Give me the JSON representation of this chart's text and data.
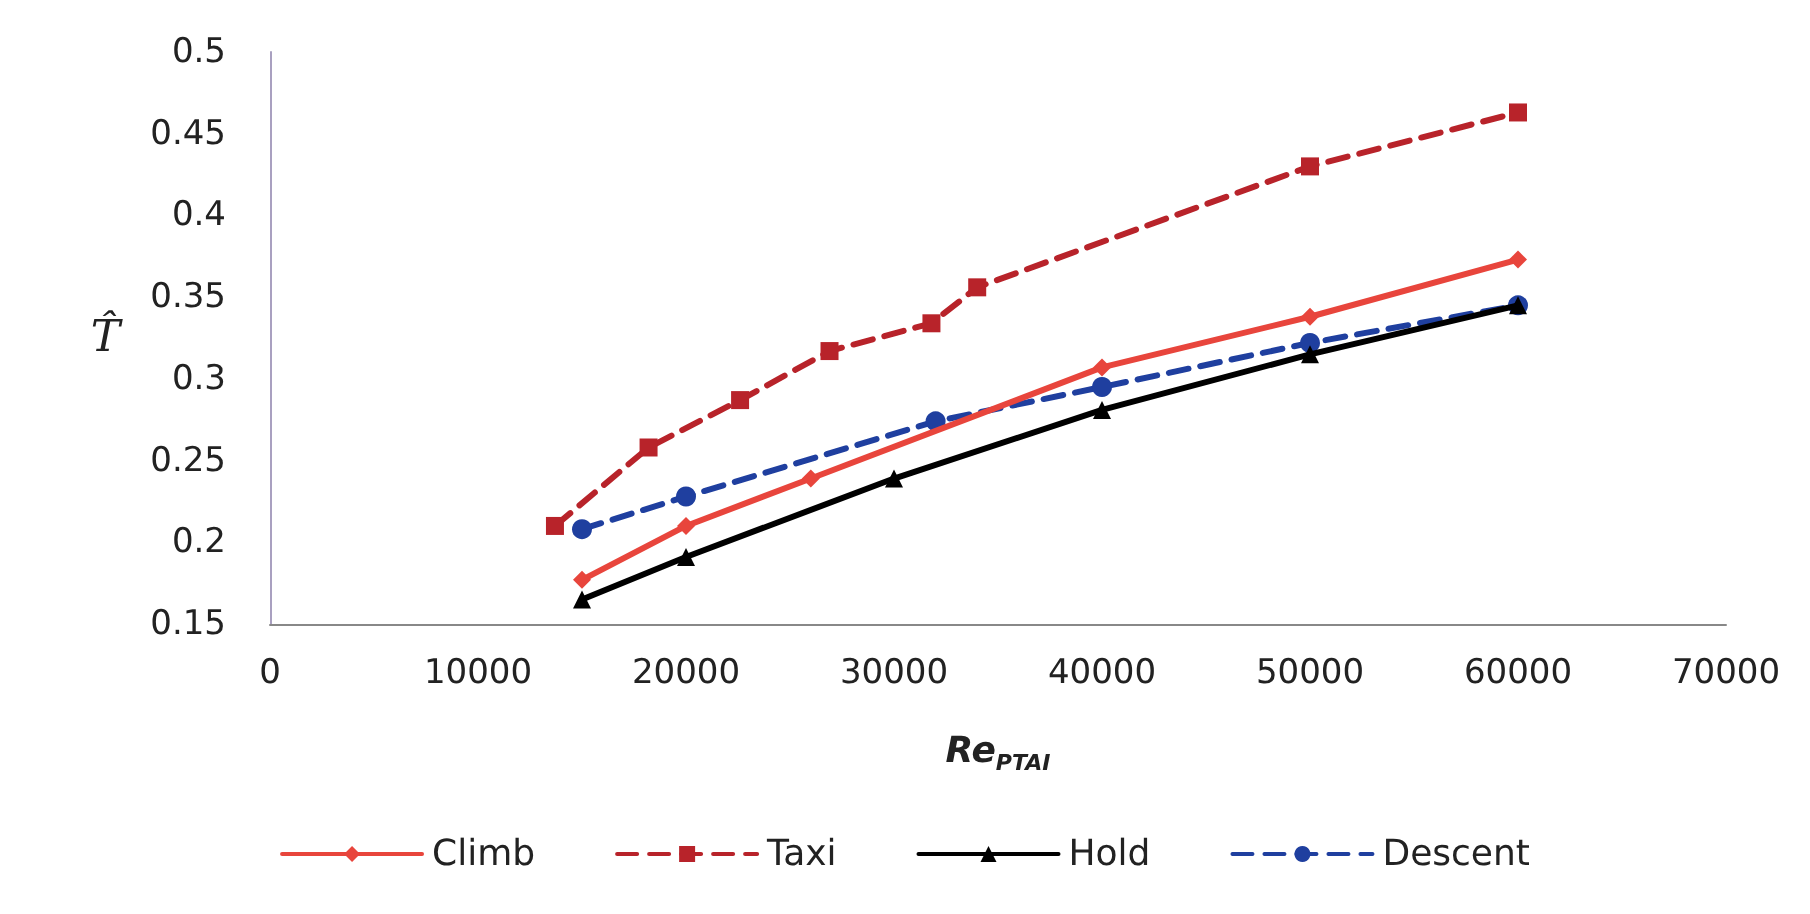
{
  "chart_data": {
    "type": "line",
    "xlabel": "Re$_{PTAI}$",
    "ylabel": "T̂",
    "xlim": [
      0,
      70000
    ],
    "xticks": [
      0,
      10000,
      20000,
      30000,
      40000,
      50000,
      60000,
      70000
    ],
    "ylim": [
      0.15,
      0.5
    ],
    "yticks": [
      0.15,
      0.2,
      0.25,
      0.3,
      0.35,
      0.4,
      0.45,
      0.5
    ],
    "grid": false,
    "legend": "bottom",
    "series": [
      {
        "name": "Climb",
        "color": "#e8453c",
        "marker": "diamond",
        "line_style": "solid",
        "x": [
          15000,
          20000,
          26000,
          40000,
          50000,
          60000
        ],
        "values": [
          0.177,
          0.21,
          0.239,
          0.307,
          0.338,
          0.373
        ]
      },
      {
        "name": "Taxi",
        "color": "#b8232a",
        "marker": "square",
        "line_style": "dashed",
        "x": [
          13700,
          18200,
          22600,
          26900,
          31800,
          34000,
          50000,
          60000
        ],
        "values": [
          0.21,
          0.258,
          0.287,
          0.317,
          0.334,
          0.356,
          0.43,
          0.463
        ]
      },
      {
        "name": "Hold",
        "color": "#000000",
        "marker": "triangle",
        "line_style": "solid",
        "x": [
          15000,
          20000,
          30000,
          40000,
          50000,
          60000
        ],
        "values": [
          0.165,
          0.191,
          0.239,
          0.281,
          0.315,
          0.345
        ]
      },
      {
        "name": "Descent",
        "color": "#1f3f9f",
        "marker": "circle",
        "line_style": "dashed",
        "x": [
          15000,
          20000,
          32000,
          40000,
          50000,
          60000
        ],
        "values": [
          0.208,
          0.228,
          0.274,
          0.295,
          0.322,
          0.345
        ]
      }
    ]
  }
}
